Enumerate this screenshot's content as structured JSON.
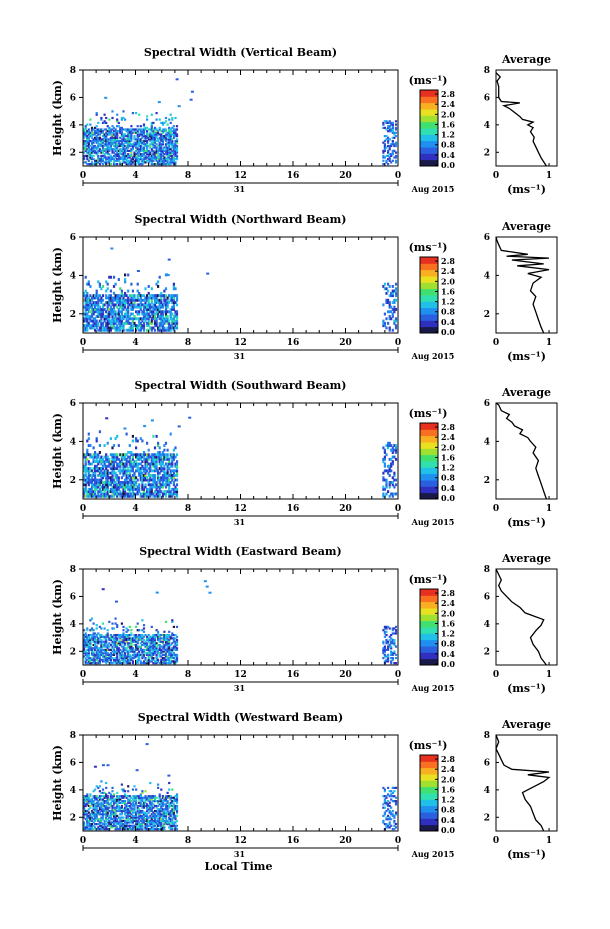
{
  "chart_data": [
    {
      "type": "heatmap",
      "title": "Spectral Width (Vertical Beam)",
      "ylabel": "Height (km)",
      "x_ticks": [
        "0",
        "4",
        "8",
        "12",
        "16",
        "20",
        "0"
      ],
      "day_label": "31",
      "month_label": "Aug 2015",
      "y_ticks": [
        "2",
        "4",
        "6",
        "8"
      ],
      "xlim": [
        0,
        24
      ],
      "ylim": [
        1,
        8
      ],
      "colorbar": {
        "unit": "(ms⁻¹)",
        "ticks": [
          "0.0",
          "0.4",
          "0.8",
          "1.2",
          "1.6",
          "2.0",
          "2.4",
          "2.8"
        ],
        "range": [
          0,
          3.0
        ]
      },
      "data_coverage": {
        "x_range": [
          0,
          7.2
        ],
        "max_height_km": 5.0,
        "dense_height_km": 3.7,
        "late_window": [
          22.8,
          23.8
        ]
      },
      "average": {
        "title": "Average",
        "xlabel": "(ms⁻¹)",
        "x_ticks": [
          "0",
          "1"
        ],
        "xlim": [
          0,
          1.15
        ],
        "ylim": [
          1,
          8
        ],
        "y_ticks": [
          "2",
          "4",
          "6",
          "8"
        ],
        "profile": [
          [
            0.95,
            1.0
          ],
          [
            0.9,
            1.3
          ],
          [
            0.85,
            1.6
          ],
          [
            0.8,
            2.0
          ],
          [
            0.75,
            2.4
          ],
          [
            0.7,
            2.8
          ],
          [
            0.72,
            3.1
          ],
          [
            0.65,
            3.5
          ],
          [
            0.7,
            3.8
          ],
          [
            0.6,
            4.0
          ],
          [
            0.7,
            4.2
          ],
          [
            0.5,
            4.4
          ],
          [
            0.45,
            4.6
          ],
          [
            0.35,
            4.9
          ],
          [
            0.25,
            5.2
          ],
          [
            0.15,
            5.4
          ],
          [
            0.45,
            5.6
          ],
          [
            0.1,
            5.7
          ],
          [
            0.05,
            6.0
          ],
          [
            0.05,
            6.8
          ],
          [
            0.02,
            7.2
          ],
          [
            0.08,
            7.5
          ],
          [
            0.0,
            7.8
          ]
        ]
      }
    },
    {
      "type": "heatmap",
      "title": "Spectral Width (Northward Beam)",
      "ylabel": "Height (km)",
      "x_ticks": [
        "0",
        "4",
        "8",
        "12",
        "16",
        "20",
        "0"
      ],
      "day_label": "31",
      "month_label": "Aug 2015",
      "y_ticks": [
        "2",
        "4",
        "6"
      ],
      "xlim": [
        0,
        24
      ],
      "ylim": [
        1,
        6
      ],
      "colorbar": {
        "unit": "(ms⁻¹)",
        "ticks": [
          "0.0",
          "0.4",
          "0.8",
          "1.2",
          "1.6",
          "2.0",
          "2.4",
          "2.8"
        ],
        "range": [
          0,
          3.0
        ]
      },
      "data_coverage": {
        "x_range": [
          0,
          7.2
        ],
        "max_height_km": 4.0,
        "dense_height_km": 3.0,
        "late_window": [
          22.8,
          23.8
        ]
      },
      "average": {
        "title": "Average",
        "xlabel": "(ms⁻¹)",
        "x_ticks": [
          "0",
          "1"
        ],
        "xlim": [
          0,
          1.15
        ],
        "ylim": [
          1,
          6
        ],
        "y_ticks": [
          "2",
          "4",
          "6"
        ],
        "profile": [
          [
            0.9,
            1.0
          ],
          [
            0.85,
            1.3
          ],
          [
            0.8,
            1.7
          ],
          [
            0.75,
            2.1
          ],
          [
            0.7,
            2.5
          ],
          [
            0.75,
            2.9
          ],
          [
            0.65,
            3.2
          ],
          [
            0.7,
            3.6
          ],
          [
            0.85,
            3.9
          ],
          [
            0.6,
            4.1
          ],
          [
            1.0,
            4.3
          ],
          [
            0.4,
            4.5
          ],
          [
            0.9,
            4.6
          ],
          [
            0.3,
            4.8
          ],
          [
            1.0,
            4.9
          ],
          [
            0.2,
            5.0
          ],
          [
            0.6,
            5.1
          ],
          [
            0.1,
            5.3
          ],
          [
            0.05,
            5.6
          ],
          [
            0.02,
            5.8
          ],
          [
            0.0,
            6.0
          ]
        ]
      }
    },
    {
      "type": "heatmap",
      "title": "Spectral Width (Southward Beam)",
      "ylabel": "Height (km)",
      "x_ticks": [
        "0",
        "4",
        "8",
        "12",
        "16",
        "20",
        "0"
      ],
      "day_label": "31",
      "month_label": "Aug 2015",
      "y_ticks": [
        "2",
        "4",
        "6"
      ],
      "xlim": [
        0,
        24
      ],
      "ylim": [
        1,
        6
      ],
      "colorbar": {
        "unit": "(ms⁻¹)",
        "ticks": [
          "0.0",
          "0.4",
          "0.8",
          "1.2",
          "1.6",
          "2.0",
          "2.4",
          "2.8"
        ],
        "range": [
          0,
          3.0
        ]
      },
      "data_coverage": {
        "x_range": [
          0,
          7.2
        ],
        "max_height_km": 4.5,
        "dense_height_km": 3.3,
        "late_window": [
          22.8,
          23.8
        ]
      },
      "average": {
        "title": "Average",
        "xlabel": "(ms⁻¹)",
        "x_ticks": [
          "0",
          "1"
        ],
        "xlim": [
          0,
          1.15
        ],
        "ylim": [
          1,
          6
        ],
        "y_ticks": [
          "2",
          "4",
          "6"
        ],
        "profile": [
          [
            0.95,
            1.0
          ],
          [
            0.9,
            1.4
          ],
          [
            0.85,
            1.8
          ],
          [
            0.8,
            2.2
          ],
          [
            0.75,
            2.6
          ],
          [
            0.8,
            3.0
          ],
          [
            0.7,
            3.4
          ],
          [
            0.75,
            3.7
          ],
          [
            0.65,
            4.0
          ],
          [
            0.6,
            4.2
          ],
          [
            0.45,
            4.4
          ],
          [
            0.5,
            4.6
          ],
          [
            0.35,
            4.8
          ],
          [
            0.3,
            5.0
          ],
          [
            0.2,
            5.2
          ],
          [
            0.25,
            5.4
          ],
          [
            0.1,
            5.6
          ],
          [
            0.05,
            5.9
          ],
          [
            0.0,
            6.0
          ]
        ]
      }
    },
    {
      "type": "heatmap",
      "title": "Spectral Width (Eastward Beam)",
      "ylabel": "Height (km)",
      "x_ticks": [
        "0",
        "4",
        "8",
        "12",
        "16",
        "20",
        "0"
      ],
      "day_label": "31",
      "month_label": "Aug 2015",
      "y_ticks": [
        "2",
        "4",
        "6",
        "8"
      ],
      "xlim": [
        0,
        24
      ],
      "ylim": [
        1,
        8
      ],
      "colorbar": {
        "unit": "(ms⁻¹)",
        "ticks": [
          "0.0",
          "0.4",
          "0.8",
          "1.2",
          "1.6",
          "2.0",
          "2.4",
          "2.8"
        ],
        "range": [
          0,
          3.0
        ]
      },
      "data_coverage": {
        "x_range": [
          0,
          7.2
        ],
        "max_height_km": 4.4,
        "dense_height_km": 3.2,
        "late_window": [
          22.8,
          23.8
        ]
      },
      "average": {
        "title": "Average",
        "xlabel": "(ms⁻¹)",
        "x_ticks": [
          "0",
          "1"
        ],
        "xlim": [
          0,
          1.15
        ],
        "ylim": [
          1,
          8
        ],
        "y_ticks": [
          "2",
          "4",
          "6",
          "8"
        ],
        "profile": [
          [
            0.95,
            1.0
          ],
          [
            0.85,
            1.5
          ],
          [
            0.8,
            2.0
          ],
          [
            0.7,
            2.5
          ],
          [
            0.65,
            3.0
          ],
          [
            0.75,
            3.5
          ],
          [
            0.85,
            3.9
          ],
          [
            0.9,
            4.3
          ],
          [
            0.55,
            4.8
          ],
          [
            0.45,
            5.2
          ],
          [
            0.3,
            5.6
          ],
          [
            0.2,
            6.0
          ],
          [
            0.1,
            6.4
          ],
          [
            0.05,
            6.8
          ],
          [
            0.1,
            7.2
          ],
          [
            0.0,
            8.0
          ]
        ]
      }
    },
    {
      "type": "heatmap",
      "title": "Spectral Width (Westward Beam)",
      "ylabel": "Height (km)",
      "x_ticks": [
        "0",
        "4",
        "8",
        "12",
        "16",
        "20",
        "0"
      ],
      "day_label": "31",
      "month_label": "Aug 2015",
      "x_label": "Local Time",
      "y_ticks": [
        "2",
        "4",
        "6",
        "8"
      ],
      "xlim": [
        0,
        24
      ],
      "ylim": [
        1,
        8
      ],
      "colorbar": {
        "unit": "(ms⁻¹)",
        "ticks": [
          "0.0",
          "0.4",
          "0.8",
          "1.2",
          "1.6",
          "2.0",
          "2.4",
          "2.8"
        ],
        "range": [
          0,
          3.0
        ]
      },
      "data_coverage": {
        "x_range": [
          0,
          7.2
        ],
        "max_height_km": 4.6,
        "dense_height_km": 3.6,
        "late_window": [
          22.8,
          23.8
        ]
      },
      "average": {
        "title": "Average",
        "xlabel": "(ms⁻¹)",
        "x_ticks": [
          "0",
          "1"
        ],
        "xlim": [
          0,
          1.15
        ],
        "ylim": [
          1,
          8
        ],
        "y_ticks": [
          "2",
          "4",
          "6",
          "8"
        ],
        "profile": [
          [
            0.9,
            1.0
          ],
          [
            0.85,
            1.4
          ],
          [
            0.75,
            1.8
          ],
          [
            0.7,
            2.3
          ],
          [
            0.65,
            2.8
          ],
          [
            0.55,
            3.3
          ],
          [
            0.5,
            3.8
          ],
          [
            0.7,
            4.2
          ],
          [
            0.9,
            4.6
          ],
          [
            1.0,
            4.9
          ],
          [
            0.6,
            5.1
          ],
          [
            1.0,
            5.3
          ],
          [
            0.3,
            5.5
          ],
          [
            0.15,
            5.8
          ],
          [
            0.1,
            6.2
          ],
          [
            0.05,
            6.6
          ],
          [
            0.0,
            7.0
          ],
          [
            0.05,
            7.5
          ],
          [
            0.0,
            8.0
          ]
        ]
      }
    }
  ]
}
